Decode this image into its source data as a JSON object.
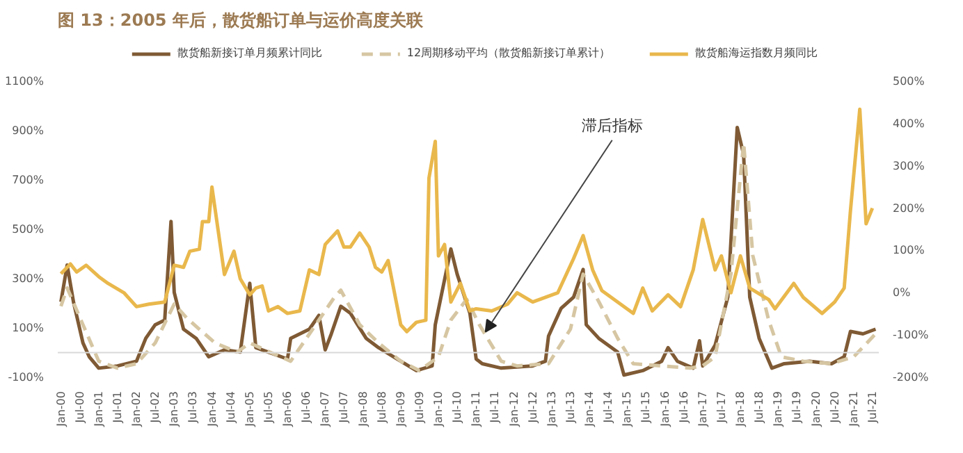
{
  "chart_data": {
    "type": "line",
    "title": "图 13：2005 年后，散货船订单与运价高度关联",
    "xlim": [
      "1999-12",
      "2021-09"
    ],
    "xticks": [
      {
        "value": "2000-01",
        "label": "Jan-00"
      },
      {
        "value": "2000-07",
        "label": "Jul-00"
      },
      {
        "value": "2001-01",
        "label": "Jan-01"
      },
      {
        "value": "2001-07",
        "label": "Jul-01"
      },
      {
        "value": "2002-01",
        "label": "Jan-02"
      },
      {
        "value": "2002-07",
        "label": "Jul-02"
      },
      {
        "value": "2003-01",
        "label": "Jan-03"
      },
      {
        "value": "2003-07",
        "label": "Jul-03"
      },
      {
        "value": "2004-01",
        "label": "Jan-04"
      },
      {
        "value": "2004-07",
        "label": "Jul-04"
      },
      {
        "value": "2005-01",
        "label": "Jan-05"
      },
      {
        "value": "2005-07",
        "label": "Jul-05"
      },
      {
        "value": "2006-01",
        "label": "Jan-06"
      },
      {
        "value": "2006-07",
        "label": "Jul-06"
      },
      {
        "value": "2007-01",
        "label": "Jan-07"
      },
      {
        "value": "2007-07",
        "label": "Jul-07"
      },
      {
        "value": "2008-01",
        "label": "Jan-08"
      },
      {
        "value": "2008-07",
        "label": "Jul-08"
      },
      {
        "value": "2009-01",
        "label": "Jan-09"
      },
      {
        "value": "2009-07",
        "label": "Jul-09"
      },
      {
        "value": "2010-01",
        "label": "Jan-10"
      },
      {
        "value": "2010-07",
        "label": "Jul-10"
      },
      {
        "value": "2011-01",
        "label": "Jan-11"
      },
      {
        "value": "2011-07",
        "label": "Jul-11"
      },
      {
        "value": "2012-01",
        "label": "Jan-12"
      },
      {
        "value": "2012-07",
        "label": "Jul-12"
      },
      {
        "value": "2013-01",
        "label": "Jan-13"
      },
      {
        "value": "2013-07",
        "label": "Jul-13"
      },
      {
        "value": "2014-01",
        "label": "Jan-14"
      },
      {
        "value": "2014-07",
        "label": "Jul-14"
      },
      {
        "value": "2015-01",
        "label": "Jan-15"
      },
      {
        "value": "2015-07",
        "label": "Jul-15"
      },
      {
        "value": "2016-01",
        "label": "Jan-16"
      },
      {
        "value": "2016-07",
        "label": "Jul-16"
      },
      {
        "value": "2017-01",
        "label": "Jan-17"
      },
      {
        "value": "2017-07",
        "label": "Jul-17"
      },
      {
        "value": "2018-01",
        "label": "Jan-18"
      },
      {
        "value": "2018-07",
        "label": "Jul-18"
      },
      {
        "value": "2019-01",
        "label": "Jan-19"
      },
      {
        "value": "2019-07",
        "label": "Jul-19"
      },
      {
        "value": "2020-01",
        "label": "Jan-20"
      },
      {
        "value": "2020-07",
        "label": "Jul-20"
      },
      {
        "value": "2021-01",
        "label": "Jan-21"
      },
      {
        "value": "2021-07",
        "label": "Jul-21"
      }
    ],
    "ylim": [
      -100,
      1100
    ],
    "yticks": [
      {
        "value": -100,
        "label": "-100%"
      },
      {
        "value": 100,
        "label": "100%"
      },
      {
        "value": 300,
        "label": "300%"
      },
      {
        "value": 500,
        "label": "500%"
      },
      {
        "value": 700,
        "label": "700%"
      },
      {
        "value": 900,
        "label": "900%"
      },
      {
        "value": 1100,
        "label": "1100%"
      }
    ],
    "y2lim": [
      -200,
      500
    ],
    "y2ticks": [
      {
        "value": -200,
        "label": "-200%"
      },
      {
        "value": -100,
        "label": "-100%"
      },
      {
        "value": 0,
        "label": "0%"
      },
      {
        "value": 100,
        "label": "100%"
      },
      {
        "value": 200,
        "label": "200%"
      },
      {
        "value": 300,
        "label": "300%"
      },
      {
        "value": 400,
        "label": "400%"
      },
      {
        "value": 500,
        "label": "500%"
      }
    ],
    "legend": "top",
    "ref_lines": [
      {
        "axis": "y",
        "value": 0,
        "color": "#d9d9d9"
      }
    ],
    "annotations": [
      {
        "text": "滞后指标",
        "x": "2011-04",
        "y": 84
      }
    ],
    "series": [
      {
        "name": "散货船新接订单月频累计同比",
        "color": "#7f5a34",
        "line_style": "solid",
        "x": [
          "2000-01",
          "2000-03",
          "2000-05",
          "2000-08",
          "2000-10",
          "2001-01",
          "2001-07",
          "2002-01",
          "2002-04",
          "2002-07",
          "2002-10",
          "2002-12",
          "2003-01",
          "2003-04",
          "2003-08",
          "2003-12",
          "2004-05",
          "2004-10",
          "2005-01",
          "2005-03",
          "2005-07",
          "2006-01",
          "2006-02",
          "2006-08",
          "2006-11",
          "2007-01",
          "2007-03",
          "2007-06",
          "2007-09",
          "2008-02",
          "2008-06",
          "2009-01",
          "2009-06",
          "2009-11",
          "2009-12",
          "2010-05",
          "2010-07",
          "2010-11",
          "2011-01",
          "2011-03",
          "2011-09",
          "2012-07",
          "2012-11",
          "2012-12",
          "2013-04",
          "2013-08",
          "2013-11",
          "2013-12",
          "2014-04",
          "2014-10",
          "2014-12",
          "2015-06",
          "2015-12",
          "2016-02",
          "2016-05",
          "2016-10",
          "2016-12",
          "2017-01",
          "2017-05",
          "2017-09",
          "2017-12",
          "2018-02",
          "2018-04",
          "2018-07",
          "2018-11",
          "2019-03",
          "2019-11",
          "2020-06",
          "2020-10",
          "2020-12",
          "2021-04",
          "2021-08"
        ],
        "values": [
          206,
          355,
          206,
          39,
          -17,
          -63,
          -54,
          -35,
          58,
          113,
          132,
          532,
          244,
          95,
          58,
          -17,
          11,
          2,
          281,
          20,
          2,
          -26,
          58,
          95,
          151,
          11,
          76,
          188,
          160,
          58,
          20,
          -35,
          -73,
          -54,
          113,
          420,
          318,
          160,
          -26,
          -45,
          -63,
          -54,
          -35,
          67,
          179,
          225,
          337,
          113,
          58,
          2,
          -91,
          -73,
          -35,
          20,
          -35,
          -63,
          48,
          -54,
          30,
          225,
          913,
          802,
          225,
          58,
          -63,
          -45,
          -35,
          -45,
          -17,
          86,
          76,
          95
        ]
      },
      {
        "name": "12周期移动平均（散货船新接订单累计）",
        "color": "#d6c6a2",
        "line_style": "dashed",
        "x": [
          "2000-01",
          "2000-03",
          "2000-08",
          "2001-01",
          "2001-07",
          "2002-01",
          "2002-07",
          "2003-01",
          "2003-05",
          "2003-09",
          "2004-02",
          "2004-09",
          "2005-01",
          "2005-09",
          "2006-02",
          "2006-10",
          "2007-04",
          "2007-06",
          "2007-12",
          "2008-06",
          "2009-01",
          "2009-07",
          "2010-01",
          "2010-05",
          "2010-10",
          "2011-02",
          "2011-09",
          "2012-02",
          "2012-12",
          "2013-07",
          "2013-11",
          "2014-04",
          "2014-10",
          "2015-03",
          "2015-12",
          "2016-09",
          "2017-01",
          "2017-05",
          "2017-10",
          "2018-02",
          "2018-05",
          "2018-10",
          "2019-02",
          "2019-09",
          "2020-06",
          "2021-01",
          "2021-08"
        ],
        "values": [
          188,
          262,
          113,
          -35,
          -63,
          -45,
          39,
          197,
          141,
          95,
          39,
          2,
          39,
          -7,
          -35,
          113,
          225,
          253,
          113,
          39,
          -35,
          -73,
          -17,
          132,
          216,
          113,
          -35,
          -54,
          -45,
          95,
          318,
          207,
          58,
          -45,
          -54,
          -63,
          -54,
          -17,
          318,
          850,
          393,
          132,
          -17,
          -35,
          -45,
          -17,
          76
        ]
      },
      {
        "name": "散货船海运指数月频同比",
        "color": "#e9b84c",
        "line_style": "solid",
        "axis": "y2",
        "x": [
          "2000-01",
          "2000-04",
          "2000-06",
          "2000-09",
          "2001-01",
          "2001-04",
          "2001-09",
          "2002-01",
          "2002-05",
          "2002-10",
          "2003-01",
          "2003-04",
          "2003-06",
          "2003-09",
          "2003-10",
          "2003-12",
          "2004-01",
          "2004-05",
          "2004-08",
          "2004-10",
          "2005-01",
          "2005-03",
          "2005-05",
          "2005-07",
          "2005-10",
          "2006-01",
          "2006-05",
          "2006-08",
          "2006-11",
          "2007-01",
          "2007-05",
          "2007-07",
          "2007-09",
          "2007-12",
          "2008-03",
          "2008-05",
          "2008-07",
          "2008-09",
          "2009-01",
          "2009-03",
          "2009-06",
          "2009-09",
          "2009-10",
          "2009-12",
          "2010-01",
          "2010-03",
          "2010-05",
          "2010-08",
          "2010-11",
          "2011-01",
          "2011-06",
          "2011-11",
          "2012-02",
          "2012-07",
          "2013-03",
          "2013-08",
          "2013-11",
          "2014-02",
          "2014-05",
          "2014-10",
          "2015-03",
          "2015-06",
          "2015-09",
          "2016-02",
          "2016-06",
          "2016-10",
          "2017-01",
          "2017-05",
          "2017-07",
          "2017-10",
          "2018-01",
          "2018-04",
          "2018-10",
          "2018-12",
          "2019-06",
          "2019-09",
          "2020-03",
          "2020-07",
          "2020-10",
          "2020-12",
          "2021-03",
          "2021-05",
          "2021-07"
        ],
        "values": [
          45,
          68,
          49,
          65,
          38,
          22,
          0,
          -33,
          -27,
          -22,
          65,
          60,
          98,
          103,
          168,
          168,
          250,
          43,
          98,
          33,
          -5,
          11,
          16,
          -43,
          -33,
          -49,
          -43,
          54,
          43,
          114,
          146,
          108,
          108,
          141,
          108,
          60,
          49,
          76,
          -76,
          -92,
          -70,
          -65,
          271,
          358,
          87,
          114,
          -22,
          22,
          -43,
          -38,
          -43,
          -27,
          0,
          -22,
          0,
          81,
          135,
          54,
          5,
          -22,
          -49,
          11,
          -43,
          -5,
          -33,
          54,
          173,
          54,
          87,
          0,
          87,
          11,
          -16,
          -38,
          22,
          -11,
          -49,
          -22,
          11,
          195,
          434,
          163,
          200
        ]
      }
    ]
  }
}
